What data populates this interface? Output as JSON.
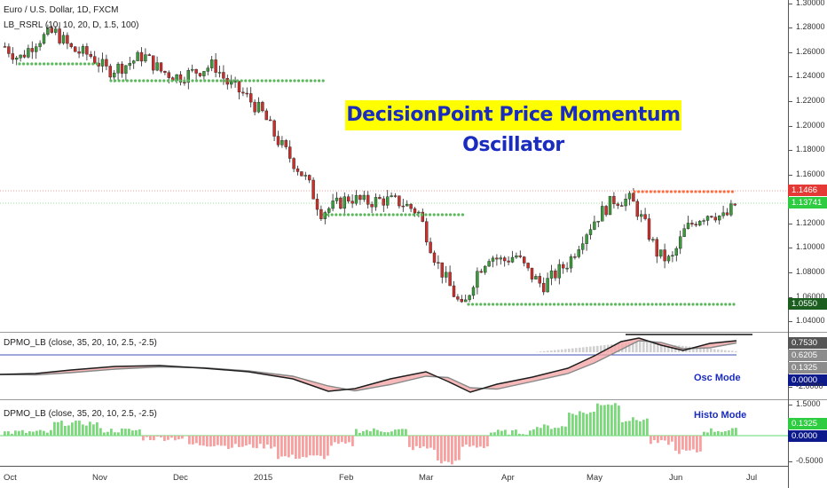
{
  "main": {
    "symbol_header": "Euro / U.S. Dollar, 1D, FXCM",
    "indicator_header": "LB_RSRL (10, 10, 20, D, 1.5, 100)",
    "title_box": "DecisionPoint Price Momentum Oscillator",
    "y_ticks": [
      "1.30000",
      "1.28000",
      "1.26000",
      "1.24000",
      "1.22000",
      "1.20000",
      "1.18000",
      "1.16000",
      "1.12000",
      "1.10000",
      "1.08000",
      "1.06000",
      "1.04000"
    ],
    "price_tags": {
      "red": "1.1466",
      "green": "1.13741",
      "dark": "1.0550"
    }
  },
  "osc_pane": {
    "header": "DPMO_LB (close, 35, 20, 10, 2.5, -2.5)",
    "mode_label": "Osc Mode",
    "tags": {
      "a": "0.7530",
      "b": "0.6205",
      "c": "0.1325",
      "d": "0.0000"
    },
    "bottom_tick": "-2.0000"
  },
  "histo_pane": {
    "header": "DPMO_LB (close, 35, 20, 10, 2.5, -2.5)",
    "mode_label": "Histo Mode",
    "tags": {
      "a": "0.1325",
      "b": "0.0000"
    },
    "ticks": [
      "1.5000",
      "-0.5000"
    ]
  },
  "x_axis": {
    "labels": [
      "Oct",
      "Nov",
      "Dec",
      "2015",
      "Feb",
      "Mar",
      "Apr",
      "May",
      "Jun",
      "Jul"
    ]
  },
  "colors": {
    "up": "#3c9a3c",
    "down": "#c9302c",
    "support_dot": "#5cb85c",
    "resist_dot": "#ff7043",
    "accent_blue": "#1a2bbf",
    "highlight": "#ffff00"
  }
}
